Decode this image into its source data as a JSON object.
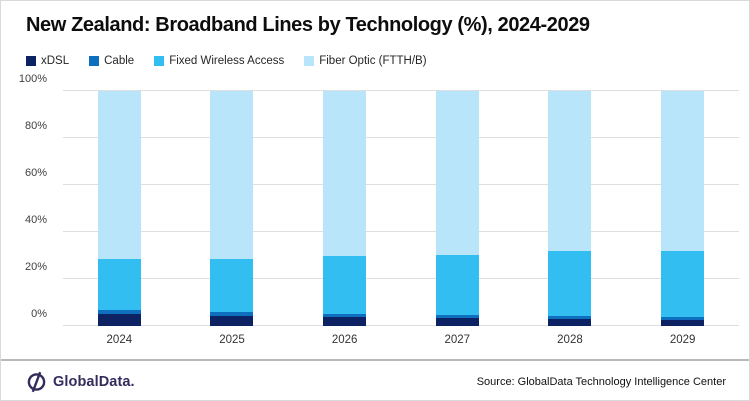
{
  "title": "New Zealand: Broadband Lines by Technology (%), 2024-2029",
  "legend": [
    {
      "label": "xDSL",
      "color": "#0c2263"
    },
    {
      "label": "Cable",
      "color": "#0e6fbe"
    },
    {
      "label": "Fixed Wireless Access",
      "color": "#33bef2"
    },
    {
      "label": "Fiber Optic (FTTH/B)",
      "color": "#b9e5fa"
    }
  ],
  "chart_data": {
    "type": "bar",
    "stacked": true,
    "title": "New Zealand: Broadband Lines by Technology (%), 2024-2029",
    "categories": [
      "2024",
      "2025",
      "2026",
      "2027",
      "2028",
      "2029"
    ],
    "series": [
      {
        "name": "xDSL",
        "color": "#0c2263",
        "values": [
          5.0,
          4.3,
          3.8,
          3.3,
          2.9,
          2.4
        ]
      },
      {
        "name": "Cable",
        "color": "#0e6fbe",
        "values": [
          1.8,
          1.7,
          1.4,
          1.4,
          1.3,
          1.4
        ]
      },
      {
        "name": "Fixed Wireless Access",
        "color": "#33bef2",
        "values": [
          21.8,
          22.5,
          24.6,
          25.6,
          27.8,
          28.0
        ]
      },
      {
        "name": "Fiber Optic (FTTH/B)",
        "color": "#b9e5fa",
        "values": [
          71.4,
          71.5,
          70.2,
          69.7,
          68.0,
          68.2
        ]
      }
    ],
    "xlabel": "",
    "ylabel": "",
    "ylim": [
      0,
      100
    ],
    "y_ticks": [
      "0%",
      "20%",
      "40%",
      "60%",
      "80%",
      "100%"
    ],
    "grid": true,
    "legend_position": "top"
  },
  "footer": {
    "brand": "GlobalData.",
    "source": "Source: GlobalData Technology Intelligence Center"
  }
}
